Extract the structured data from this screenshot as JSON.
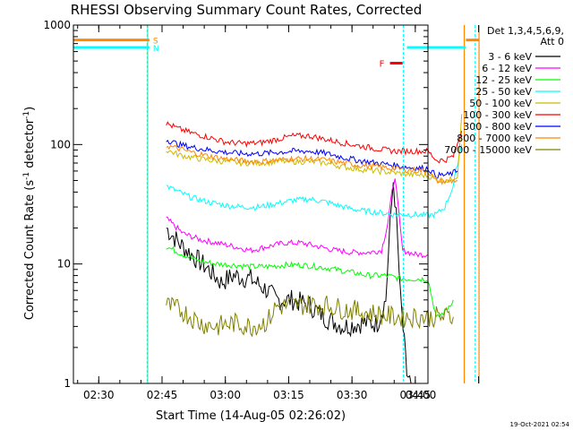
{
  "chart_data": {
    "type": "line",
    "title": "RHESSI Observing Summary Count Rates, Corrected",
    "xlabel": "Start Time (14-Aug-05 02:26:02)",
    "ylabel_parts": [
      "Corrected Count Rate (s",
      "-1",
      " detector",
      "-1",
      ")"
    ],
    "y_scale": "log",
    "ylim": [
      1,
      1000
    ],
    "xlim_minutes_after_0226": [
      -2,
      82
    ],
    "y_ticks": [
      {
        "value": 1,
        "label": "1"
      },
      {
        "value": 10,
        "label": "10"
      },
      {
        "value": 100,
        "label": "100"
      },
      {
        "value": 1000,
        "label": "1000"
      }
    ],
    "x_ticks": [
      {
        "t": 4,
        "label": "02:30"
      },
      {
        "t": 19,
        "label": "02:45"
      },
      {
        "t": 34,
        "label": "03:00"
      },
      {
        "t": 49,
        "label": "03:15"
      },
      {
        "t": 64,
        "label": "03:30"
      },
      {
        "t": 79,
        "label": "03:45"
      },
      {
        "t": 94,
        "label": "04:00"
      }
    ],
    "legend": {
      "header": [
        "Det 1,3,4,5,6,9,",
        "Att 0"
      ],
      "position": "right"
    },
    "series": [
      {
        "name": "3 - 6 keV",
        "color": "#000000",
        "points": [
          [
            20,
            20
          ],
          [
            23,
            15
          ],
          [
            26,
            12
          ],
          [
            30,
            9
          ],
          [
            33,
            7
          ],
          [
            36,
            8
          ],
          [
            40,
            7.5
          ],
          [
            44,
            6
          ],
          [
            46,
            5
          ],
          [
            50,
            5
          ],
          [
            54,
            4.5
          ],
          [
            58,
            3.5
          ],
          [
            62,
            3
          ],
          [
            66,
            3.2
          ],
          [
            70,
            3.2
          ],
          [
            72,
            5
          ],
          [
            73,
            20
          ],
          [
            73.8,
            50
          ],
          [
            74.5,
            25
          ],
          [
            75.5,
            5
          ],
          [
            77,
            1.2
          ],
          [
            78,
            1
          ]
        ]
      },
      {
        "name": "6 - 12 keV",
        "color": "#ff00ff",
        "points": [
          [
            20,
            24
          ],
          [
            24,
            18
          ],
          [
            28,
            16
          ],
          [
            32,
            15
          ],
          [
            36,
            14
          ],
          [
            40,
            13
          ],
          [
            44,
            14
          ],
          [
            48,
            15
          ],
          [
            52,
            15
          ],
          [
            56,
            14
          ],
          [
            60,
            13
          ],
          [
            64,
            12.5
          ],
          [
            68,
            12.5
          ],
          [
            71,
            13
          ],
          [
            72.5,
            22
          ],
          [
            73.5,
            40
          ],
          [
            74.2,
            55
          ],
          [
            75,
            28
          ],
          [
            76,
            13
          ],
          [
            79,
            12
          ],
          [
            82,
            12
          ]
        ]
      },
      {
        "name": "12 - 25 keV",
        "color": "#00ff00",
        "points": [
          [
            20,
            14
          ],
          [
            24,
            12
          ],
          [
            28,
            10.5
          ],
          [
            32,
            10
          ],
          [
            36,
            9.8
          ],
          [
            40,
            9.5
          ],
          [
            44,
            9.5
          ],
          [
            48,
            9.8
          ],
          [
            52,
            9.8
          ],
          [
            56,
            9.5
          ],
          [
            60,
            9
          ],
          [
            64,
            8.5
          ],
          [
            68,
            8
          ],
          [
            72,
            8
          ],
          [
            76,
            7.5
          ],
          [
            80,
            7.5
          ],
          [
            82,
            7.5
          ],
          [
            84,
            3.5
          ],
          [
            86,
            4
          ],
          [
            88,
            5
          ]
        ]
      },
      {
        "name": "25 - 50 keV",
        "color": "#00ffff",
        "points": [
          [
            20,
            45
          ],
          [
            23,
            40
          ],
          [
            26,
            36
          ],
          [
            30,
            33
          ],
          [
            34,
            31
          ],
          [
            38,
            30
          ],
          [
            42,
            30
          ],
          [
            46,
            32
          ],
          [
            50,
            34
          ],
          [
            54,
            35
          ],
          [
            58,
            33
          ],
          [
            62,
            30
          ],
          [
            66,
            28
          ],
          [
            70,
            27
          ],
          [
            74,
            26
          ],
          [
            78,
            26
          ],
          [
            82,
            25.5
          ],
          [
            84,
            26
          ],
          [
            86,
            30
          ],
          [
            88,
            45
          ],
          [
            89,
            70
          ],
          [
            90,
            100
          ]
        ]
      },
      {
        "name": "50 - 100 keV",
        "color": "#ccbb00",
        "points": [
          [
            20,
            90
          ],
          [
            23,
            82
          ],
          [
            26,
            78
          ],
          [
            30,
            74
          ],
          [
            34,
            72
          ],
          [
            38,
            70
          ],
          [
            42,
            70
          ],
          [
            46,
            72
          ],
          [
            50,
            72
          ],
          [
            54,
            72
          ],
          [
            58,
            70
          ],
          [
            62,
            65
          ],
          [
            66,
            62
          ],
          [
            70,
            60
          ],
          [
            74,
            58
          ],
          [
            78,
            56
          ],
          [
            82,
            55
          ],
          [
            84,
            50
          ],
          [
            87,
            50
          ],
          [
            89,
            55
          ],
          [
            90,
            180
          ]
        ]
      },
      {
        "name": "100 - 300 keV",
        "color": "#ff0000",
        "points": [
          [
            20,
            150
          ],
          [
            23,
            135
          ],
          [
            26,
            125
          ],
          [
            30,
            115
          ],
          [
            34,
            105
          ],
          [
            38,
            102
          ],
          [
            42,
            103
          ],
          [
            46,
            110
          ],
          [
            50,
            118
          ],
          [
            54,
            118
          ],
          [
            58,
            110
          ],
          [
            62,
            103
          ],
          [
            66,
            97
          ],
          [
            70,
            92
          ],
          [
            74,
            88
          ],
          [
            78,
            88
          ],
          [
            82,
            88
          ],
          [
            84,
            74
          ],
          [
            86,
            74
          ],
          [
            88,
            80
          ],
          [
            89,
            100
          ],
          [
            90,
            130
          ]
        ]
      },
      {
        "name": "300 - 800 keV",
        "color": "#0000ff",
        "points": [
          [
            20,
            110
          ],
          [
            23,
            100
          ],
          [
            26,
            95
          ],
          [
            30,
            90
          ],
          [
            34,
            86
          ],
          [
            38,
            84
          ],
          [
            42,
            84
          ],
          [
            46,
            86
          ],
          [
            50,
            88
          ],
          [
            54,
            88
          ],
          [
            58,
            84
          ],
          [
            62,
            78
          ],
          [
            66,
            73
          ],
          [
            70,
            70
          ],
          [
            74,
            67
          ],
          [
            78,
            64
          ],
          [
            82,
            63
          ],
          [
            84,
            55
          ],
          [
            87,
            56
          ],
          [
            89,
            60
          ]
        ]
      },
      {
        "name": "800 - 7000 keV",
        "color": "#ff8800",
        "points": [
          [
            20,
            98
          ],
          [
            23,
            92
          ],
          [
            26,
            86
          ],
          [
            30,
            80
          ],
          [
            34,
            76
          ],
          [
            38,
            73
          ],
          [
            42,
            72
          ],
          [
            46,
            74
          ],
          [
            50,
            76
          ],
          [
            54,
            76
          ],
          [
            58,
            74
          ],
          [
            62,
            70
          ],
          [
            66,
            67
          ],
          [
            70,
            65
          ],
          [
            74,
            63
          ],
          [
            78,
            61
          ],
          [
            82,
            60
          ],
          [
            84,
            50
          ],
          [
            86,
            49
          ],
          [
            89,
            50
          ]
        ]
      },
      {
        "name": "7000 - 15000 keV",
        "color": "#808000",
        "points": [
          [
            20,
            4.5
          ],
          [
            24,
            4
          ],
          [
            28,
            3.2
          ],
          [
            32,
            3
          ],
          [
            36,
            3.2
          ],
          [
            40,
            3
          ],
          [
            44,
            3.3
          ],
          [
            46,
            4.4
          ],
          [
            50,
            4.5
          ],
          [
            54,
            4.6
          ],
          [
            58,
            4.5
          ],
          [
            62,
            4.2
          ],
          [
            66,
            4
          ],
          [
            70,
            3.8
          ],
          [
            74,
            3.6
          ],
          [
            78,
            3.6
          ],
          [
            82,
            3.6
          ],
          [
            86,
            3.6
          ],
          [
            88,
            3.6
          ]
        ]
      }
    ],
    "attenuator_segments": [
      {
        "color": "#ff8800",
        "label": "S",
        "y": 750,
        "ranges": [
          [
            -2,
            16
          ],
          [
            91,
            94
          ]
        ]
      },
      {
        "color": "#00ffff",
        "label": "N",
        "y": 650,
        "ranges": [
          [
            -2,
            16
          ],
          [
            77,
            91
          ]
        ]
      }
    ],
    "flare_marker": {
      "label": "F",
      "color": "#ff0000",
      "y": 480,
      "t_start": 73,
      "t_end": 76
    },
    "vertical_lines": [
      {
        "t": 15.5,
        "color": "#ff8800"
      },
      {
        "t": 15.6,
        "color": "#00ffff"
      },
      {
        "t": 76.2,
        "color": "#00ffff"
      },
      {
        "t": 90.6,
        "color": "#ff8800"
      },
      {
        "t": 93.2,
        "color": "#00ffff"
      },
      {
        "t": 94.1,
        "color": "#ff8800"
      }
    ],
    "footer_timestamp": "19-Oct-2021 02:54"
  }
}
